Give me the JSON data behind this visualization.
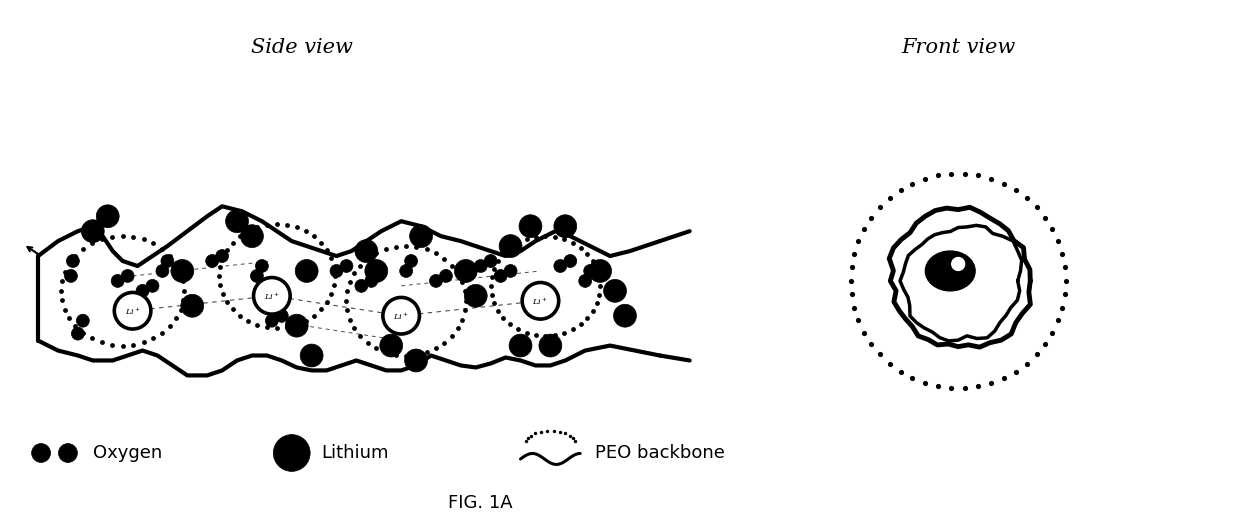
{
  "title": "FIG. 1A",
  "side_view_label": "Side view",
  "front_view_label": "Front view",
  "legend_oxygen": "Oxygen",
  "legend_lithium": "Lithium",
  "legend_peo": "PEO backbone",
  "bg_color": "#ffffff",
  "text_color": "#000000",
  "figsize": [
    12.4,
    5.26
  ],
  "dpi": 100
}
